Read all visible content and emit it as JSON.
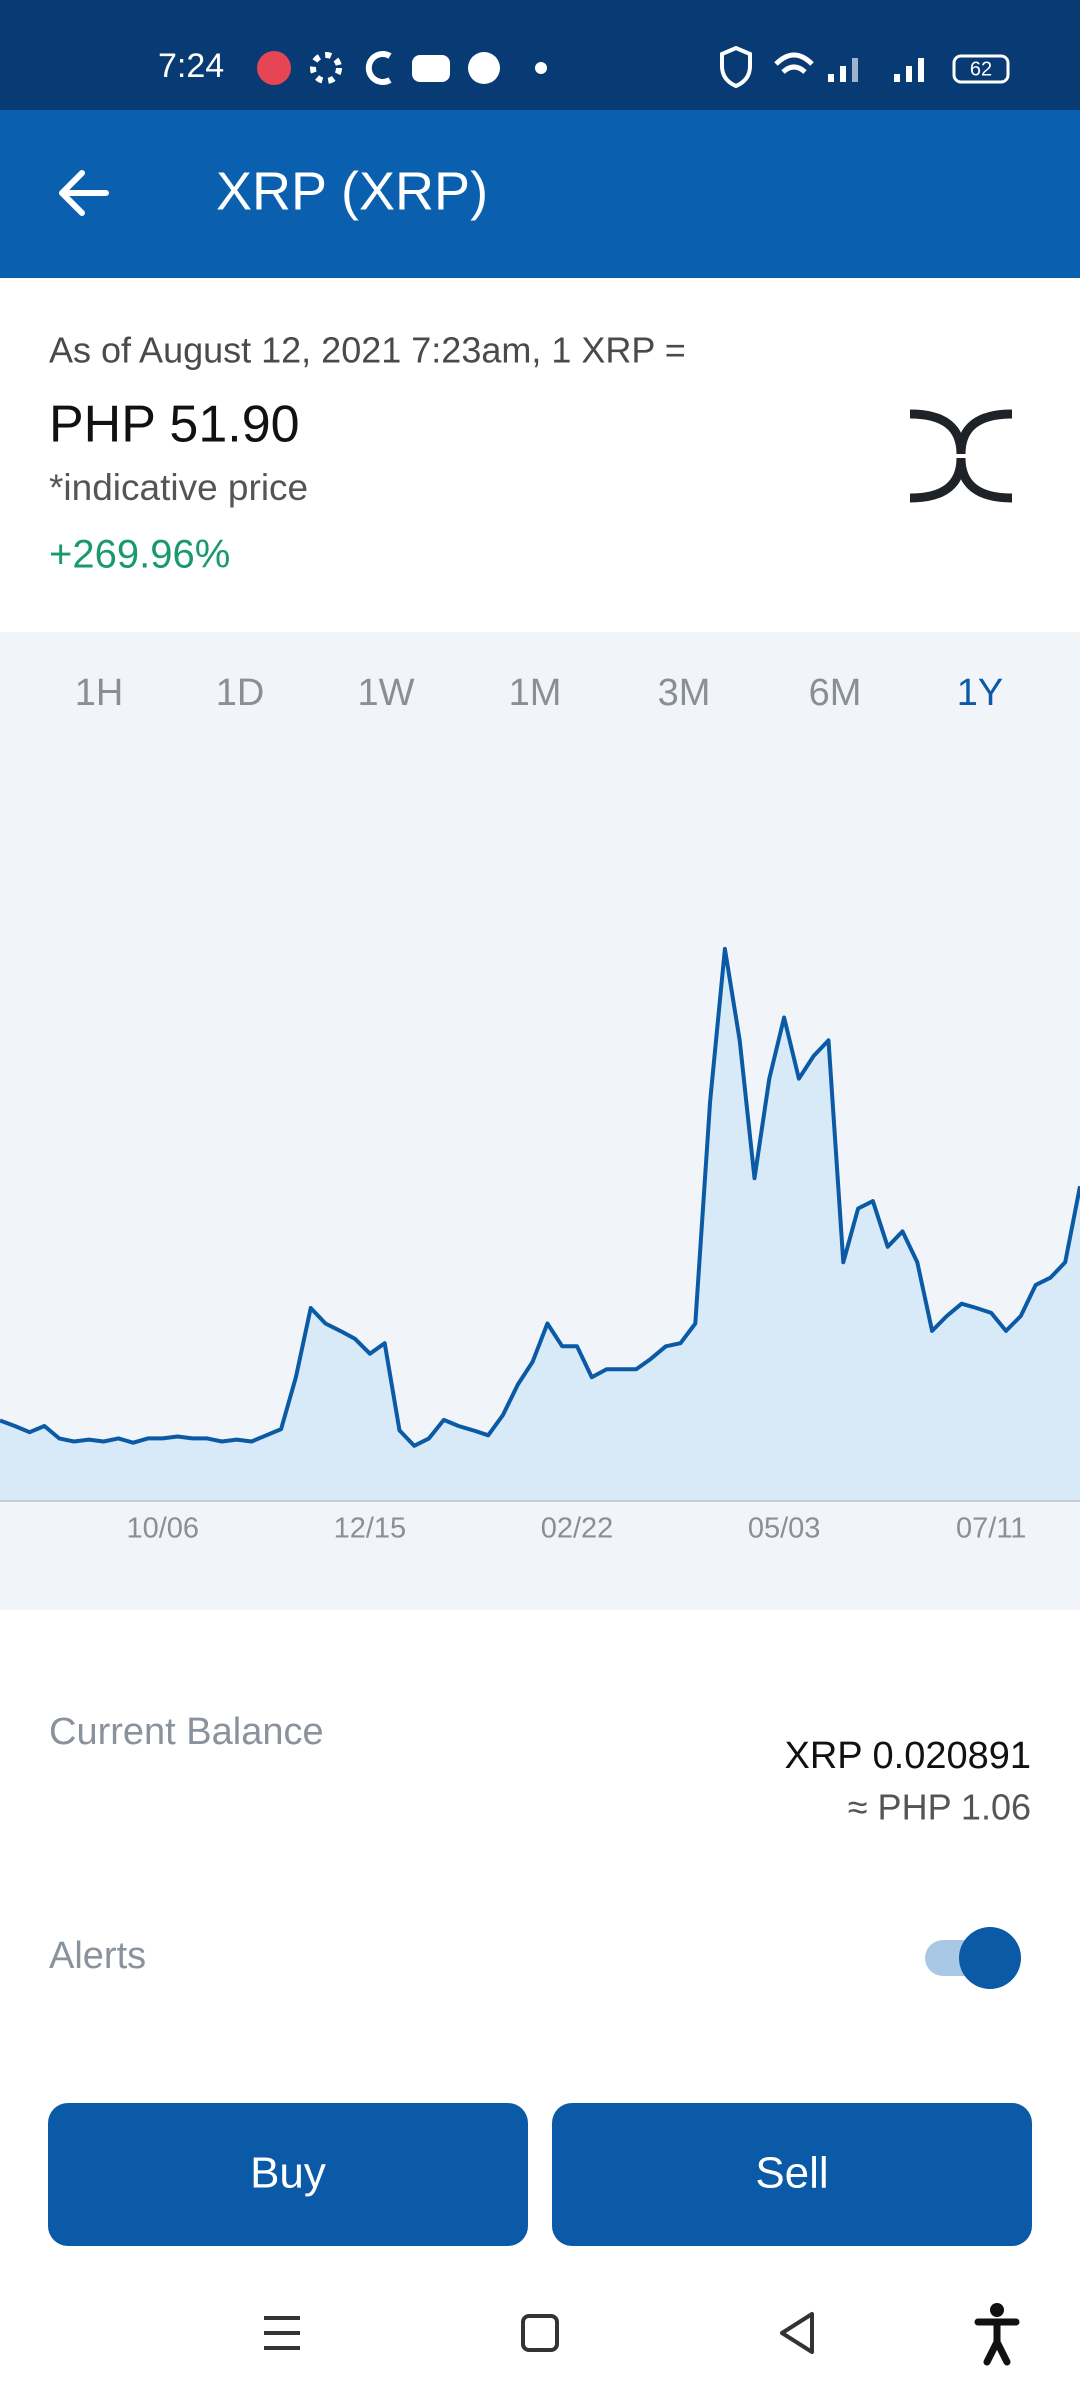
{
  "status_bar": {
    "time": "7:24",
    "battery": "62"
  },
  "header": {
    "title": "XRP (XRP)"
  },
  "quote": {
    "as_of": "As of August 12, 2021 7:23am, 1 XRP =",
    "price": "PHP 51.90",
    "note": "*indicative price",
    "change": "+269.96%"
  },
  "range_tabs": {
    "options": [
      "1H",
      "1D",
      "1W",
      "1M",
      "3M",
      "6M",
      "1Y"
    ],
    "selected": 6
  },
  "chart_data": {
    "type": "line",
    "color": "#0a5aa5",
    "values": [
      14.0,
      13.1,
      12.1,
      13.1,
      11.1,
      10.6,
      10.9,
      10.6,
      11.1,
      10.4,
      11.1,
      11.1,
      11.4,
      11.1,
      11.1,
      10.6,
      10.9,
      10.6,
      11.6,
      12.6,
      21.0,
      32.2,
      29.7,
      28.5,
      27.2,
      24.8,
      26.5,
      12.4,
      9.9,
      11.1,
      14.1,
      13.1,
      12.4,
      11.6,
      14.9,
      19.8,
      23.5,
      29.7,
      26.0,
      26.0,
      21.0,
      22.3,
      22.3,
      22.3,
      24.0,
      26.0,
      26.5,
      29.7,
      65.6,
      90.3,
      75.5,
      53.2,
      69.3,
      79.2,
      69.3,
      73.0,
      75.5,
      39.6,
      48.3,
      49.5,
      42.1,
      44.6,
      39.6,
      28.5,
      30.9,
      32.9,
      32.2,
      31.4,
      28.5,
      30.9,
      35.9,
      37.1,
      39.6,
      51.9
    ],
    "xlim": [
      0,
      73
    ],
    "xticks": [
      {
        "value": 11,
        "label": "10/06"
      },
      {
        "value": 25,
        "label": "12/15"
      },
      {
        "value": 39,
        "label": "02/22"
      },
      {
        "value": 53,
        "label": "05/03"
      },
      {
        "value": 67,
        "label": "07/11"
      }
    ],
    "ylim": [
      0,
      100
    ],
    "grid": false
  },
  "balance": {
    "label": "Current Balance",
    "amount": "XRP 0.020891",
    "converted": "≈ PHP 1.06"
  },
  "alerts": {
    "label": "Alerts",
    "enabled": true
  },
  "actions": {
    "buy": "Buy",
    "sell": "Sell"
  }
}
